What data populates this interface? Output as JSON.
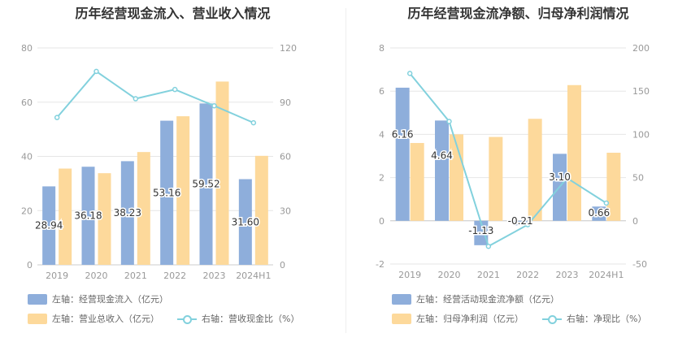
{
  "chart_data": [
    {
      "type": "bar",
      "title": "历年经营现金流入、营业收入情况",
      "categories": [
        "2019",
        "2020",
        "2021",
        "2022",
        "2023",
        "2024H1"
      ],
      "y_left": {
        "ticks": [
          "0",
          "20",
          "40",
          "60",
          "80"
        ],
        "ylim": [
          0,
          80
        ]
      },
      "y_right": {
        "ticks": [
          "0",
          "30",
          "60",
          "90",
          "120"
        ],
        "ylim": [
          0,
          120
        ]
      },
      "series": [
        {
          "name": "左轴：经营现金流入（亿元）",
          "kind": "bar",
          "axis": "left",
          "color": "#8eaedb",
          "values": [
            28.94,
            36.18,
            38.23,
            53.16,
            59.52,
            31.6
          ],
          "labels": [
            "28.94",
            "36.18",
            "38.23",
            "53.16",
            "59.52",
            "31.60"
          ]
        },
        {
          "name": "左轴：营业总收入（亿元）",
          "kind": "bar",
          "axis": "left",
          "color": "#fdd99b",
          "values": [
            35.5,
            33.8,
            41.6,
            54.8,
            67.6,
            40.2
          ]
        },
        {
          "name": "右轴：营收现金比（%）",
          "kind": "line",
          "axis": "right",
          "color": "#82d1dd",
          "values": [
            81.5,
            107.0,
            91.9,
            97.0,
            88.0,
            78.6
          ]
        }
      ],
      "legend": [
        {
          "text": "左轴：经营现金流入（亿元）",
          "type": "bar",
          "color": "#8eaedb"
        },
        {
          "text": "左轴：营业总收入（亿元）",
          "type": "bar",
          "color": "#fdd99b"
        },
        {
          "text": "右轴：营收现金比（%）",
          "type": "line",
          "color": "#82d1dd"
        }
      ]
    },
    {
      "type": "bar",
      "title": "历年经营现金流净额、归母净利润情况",
      "categories": [
        "2019",
        "2020",
        "2021",
        "2022",
        "2023",
        "2024H1"
      ],
      "y_left": {
        "ticks": [
          "-2",
          "0",
          "2",
          "4",
          "6",
          "8"
        ],
        "ylim": [
          -2,
          8
        ]
      },
      "y_right": {
        "ticks": [
          "-50",
          "0",
          "50",
          "100",
          "150",
          "200"
        ],
        "ylim": [
          -50,
          200
        ]
      },
      "series": [
        {
          "name": "左轴：经营活动现金流净额（亿元）",
          "kind": "bar",
          "axis": "left",
          "color": "#8eaedb",
          "values": [
            6.16,
            4.64,
            -1.13,
            -0.21,
            3.1,
            0.66
          ],
          "labels": [
            "6.16",
            "4.64",
            "-1.13",
            "-0.21",
            "3.10",
            "0.66"
          ]
        },
        {
          "name": "左轴：归母净利润（亿元）",
          "kind": "bar",
          "axis": "left",
          "color": "#fdd99b",
          "values": [
            3.6,
            4.0,
            3.88,
            4.72,
            6.28,
            3.15
          ]
        },
        {
          "name": "右轴：净现比（%）",
          "kind": "line",
          "axis": "right",
          "color": "#82d1dd",
          "values": [
            170.5,
            115.0,
            -29.5,
            -4.5,
            49.5,
            20.5
          ]
        }
      ],
      "legend": [
        {
          "text": "左轴：经营活动现金流净额（亿元）",
          "type": "bar",
          "color": "#8eaedb"
        },
        {
          "text": "左轴：归母净利润（亿元）",
          "type": "bar",
          "color": "#fdd99b"
        },
        {
          "text": "右轴：净现比（%）",
          "type": "line",
          "color": "#82d1dd"
        }
      ]
    }
  ]
}
